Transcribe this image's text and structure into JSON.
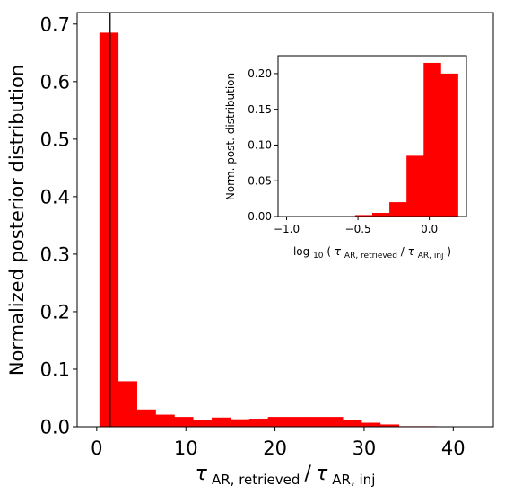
{
  "chart_data": [
    {
      "type": "bar",
      "bins": [
        {
          "x0": 0.3,
          "x1": 2.4,
          "value": 0.685
        },
        {
          "x0": 2.4,
          "x1": 4.5,
          "value": 0.079
        },
        {
          "x0": 4.5,
          "x1": 6.6,
          "value": 0.03
        },
        {
          "x0": 6.6,
          "x1": 8.7,
          "value": 0.021
        },
        {
          "x0": 8.7,
          "x1": 10.8,
          "value": 0.017
        },
        {
          "x0": 10.8,
          "x1": 12.9,
          "value": 0.012
        },
        {
          "x0": 12.9,
          "x1": 15.0,
          "value": 0.016
        },
        {
          "x0": 15.0,
          "x1": 17.1,
          "value": 0.013
        },
        {
          "x0": 17.1,
          "x1": 19.2,
          "value": 0.014
        },
        {
          "x0": 19.2,
          "x1": 21.3,
          "value": 0.017
        },
        {
          "x0": 21.3,
          "x1": 23.4,
          "value": 0.017
        },
        {
          "x0": 23.4,
          "x1": 25.5,
          "value": 0.017
        },
        {
          "x0": 25.5,
          "x1": 27.6,
          "value": 0.017
        },
        {
          "x0": 27.6,
          "x1": 29.7,
          "value": 0.011
        },
        {
          "x0": 29.7,
          "x1": 31.8,
          "value": 0.007
        },
        {
          "x0": 31.8,
          "x1": 33.9,
          "value": 0.004
        },
        {
          "x0": 33.9,
          "x1": 36.0,
          "value": 0.001
        },
        {
          "x0": 36.0,
          "x1": 38.1,
          "value": 0.001
        },
        {
          "x0": 38.1,
          "x1": 40.2,
          "value": 0.0002
        },
        {
          "x0": 40.2,
          "x1": 42.3,
          "value": 0.0001
        }
      ],
      "vline_x": 1.5,
      "color": "#ff0000",
      "vline_color": "#000000",
      "xlim": [
        -2.2,
        44.5
      ],
      "ylim": [
        0,
        0.72
      ],
      "xticks": [
        0,
        10,
        20,
        30,
        40
      ],
      "xtick_labels": [
        "0",
        "10",
        "20",
        "30",
        "40"
      ],
      "yticks": [
        0.0,
        0.1,
        0.2,
        0.3,
        0.4,
        0.5,
        0.6,
        0.7
      ],
      "ytick_labels": [
        "0.0",
        "0.1",
        "0.2",
        "0.3",
        "0.4",
        "0.5",
        "0.6",
        "0.7"
      ],
      "ylabel": "Normalized posterior distribution",
      "xlabel": "τ_AR,retrieved/τ_AR,inj"
    },
    {
      "type": "bar",
      "bins": [
        {
          "x0": -1.0,
          "x1": -0.88,
          "value": 0.0
        },
        {
          "x0": -0.88,
          "x1": -0.76,
          "value": 0.0
        },
        {
          "x0": -0.76,
          "x1": -0.64,
          "value": 0.0
        },
        {
          "x0": -0.64,
          "x1": -0.52,
          "value": 0.0005
        },
        {
          "x0": -0.52,
          "x1": -0.4,
          "value": 0.002
        },
        {
          "x0": -0.4,
          "x1": -0.28,
          "value": 0.005
        },
        {
          "x0": -0.28,
          "x1": -0.16,
          "value": 0.02
        },
        {
          "x0": -0.16,
          "x1": -0.04,
          "value": 0.085
        },
        {
          "x0": -0.04,
          "x1": 0.08,
          "value": 0.215
        },
        {
          "x0": 0.08,
          "x1": 0.2,
          "value": 0.2
        }
      ],
      "color": "#ff0000",
      "xlim": [
        -1.06,
        0.26
      ],
      "ylim": [
        0,
        0.225
      ],
      "xticks": [
        -1.0,
        -0.5,
        0.0
      ],
      "xtick_labels": [
        "−1.0",
        "−0.5",
        "0.0"
      ],
      "yticks": [
        0.0,
        0.05,
        0.1,
        0.15,
        0.2
      ],
      "ytick_labels": [
        "0.00",
        "0.05",
        "0.10",
        "0.15",
        "0.20"
      ],
      "ylabel": "Norm. post. distribution",
      "xlabel": "log10(τ_AR,retrieved/τ_AR,inj)"
    }
  ],
  "labels": {
    "main_ylabel": "Normalized posterior distribution",
    "inset_ylabel": "Norm. post. distribution",
    "main_xlabel_tau": "τ",
    "main_xlabel_num_sub": "AR, retrieved",
    "main_xlabel_slash": "/",
    "main_xlabel_den_sub": "AR, inj",
    "inset_xlabel_log": "log",
    "inset_xlabel_base": "10",
    "inset_xlabel_open": "(",
    "inset_xlabel_tau1": "τ",
    "inset_xlabel_num_sub": "AR, retrieved",
    "inset_xlabel_slash": "/",
    "inset_xlabel_tau2": "τ",
    "inset_xlabel_den_sub": "AR, inj",
    "inset_xlabel_close": ")"
  }
}
